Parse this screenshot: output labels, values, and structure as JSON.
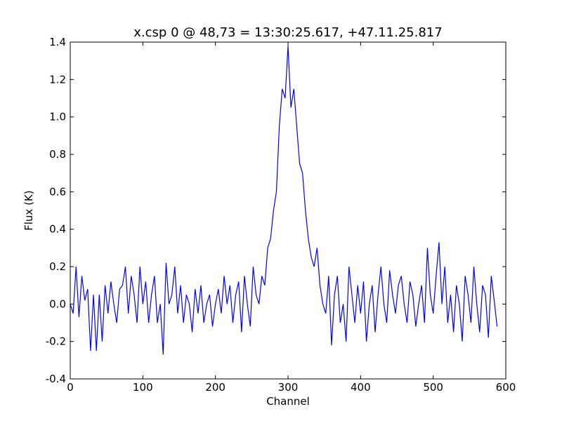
{
  "chart_data": {
    "type": "line",
    "title": "x.csp 0 @ 48,73 = 13:30:25.617, +47.11.25.817",
    "x_label": "Channel",
    "y_label": "Flux (K)",
    "x": [
      0,
      4,
      8,
      12,
      16,
      20,
      24,
      28,
      32,
      36,
      40,
      44,
      48,
      52,
      56,
      60,
      64,
      68,
      72,
      76,
      80,
      84,
      88,
      92,
      96,
      100,
      104,
      108,
      112,
      116,
      120,
      124,
      128,
      132,
      136,
      140,
      144,
      148,
      152,
      156,
      160,
      164,
      168,
      172,
      176,
      180,
      184,
      188,
      192,
      196,
      200,
      204,
      208,
      212,
      216,
      220,
      224,
      228,
      232,
      236,
      240,
      244,
      248,
      252,
      256,
      260,
      264,
      268,
      272,
      276,
      280,
      284,
      288,
      292,
      296,
      300,
      304,
      308,
      312,
      316,
      320,
      324,
      328,
      332,
      336,
      340,
      344,
      348,
      352,
      356,
      360,
      364,
      368,
      372,
      376,
      380,
      384,
      388,
      392,
      396,
      400,
      404,
      408,
      412,
      416,
      420,
      424,
      428,
      432,
      436,
      440,
      444,
      448,
      452,
      456,
      460,
      464,
      468,
      472,
      476,
      480,
      484,
      488,
      492,
      496,
      500,
      504,
      508,
      512,
      516,
      520,
      524,
      528,
      532,
      536,
      540,
      544,
      548,
      552,
      556,
      560,
      564,
      568,
      572,
      576,
      580,
      584,
      588
    ],
    "series": [
      {
        "name": "Flux",
        "color": "#0000ff",
        "values": [
          0.0,
          -0.05,
          0.2,
          -0.07,
          0.15,
          0.02,
          0.08,
          -0.25,
          0.05,
          -0.25,
          0.05,
          -0.2,
          0.1,
          -0.05,
          0.12,
          0.0,
          -0.1,
          0.08,
          0.1,
          0.2,
          -0.05,
          0.15,
          0.05,
          -0.1,
          0.2,
          0.0,
          0.12,
          -0.1,
          0.05,
          0.15,
          -0.1,
          0.0,
          -0.27,
          0.22,
          0.0,
          0.05,
          0.2,
          -0.05,
          0.1,
          -0.1,
          0.05,
          0.0,
          -0.15,
          0.08,
          -0.05,
          0.1,
          -0.1,
          0.0,
          0.05,
          -0.12,
          0.0,
          0.08,
          -0.05,
          0.15,
          0.0,
          0.1,
          -0.1,
          0.05,
          0.12,
          -0.15,
          0.15,
          0.0,
          -0.12,
          0.2,
          0.05,
          0.0,
          0.15,
          0.1,
          0.3,
          0.35,
          0.5,
          0.6,
          0.95,
          1.15,
          1.1,
          1.38,
          1.05,
          1.15,
          0.95,
          0.75,
          0.7,
          0.5,
          0.35,
          0.25,
          0.2,
          0.3,
          0.1,
          0.0,
          -0.05,
          0.15,
          -0.22,
          0.05,
          0.15,
          -0.1,
          0.0,
          -0.2,
          0.2,
          0.05,
          -0.1,
          0.1,
          -0.05,
          0.12,
          -0.2,
          0.0,
          0.1,
          -0.15,
          0.05,
          0.2,
          0.0,
          -0.1,
          0.18,
          0.05,
          -0.05,
          0.1,
          0.15,
          0.0,
          -0.1,
          0.12,
          0.05,
          -0.12,
          0.0,
          0.1,
          -0.1,
          0.3,
          0.05,
          -0.05,
          0.15,
          0.33,
          0.0,
          0.2,
          -0.1,
          0.05,
          -0.15,
          0.1,
          0.0,
          -0.2,
          0.15,
          0.05,
          -0.1,
          0.2,
          0.0,
          -0.15,
          0.1,
          0.05,
          -0.18,
          0.15,
          0.02,
          -0.12
        ]
      }
    ],
    "xlim": [
      0,
      600
    ],
    "xticks": [
      0,
      100,
      200,
      300,
      400,
      500,
      600
    ],
    "ylim": [
      -0.4,
      1.4
    ],
    "yticks": [
      -0.4,
      -0.2,
      {
        "value": 0,
        "label": "0.0"
      },
      0.2,
      0.4,
      0.6,
      0.8,
      {
        "value": 1,
        "label": "1.0"
      },
      1.2,
      1.4
    ]
  }
}
